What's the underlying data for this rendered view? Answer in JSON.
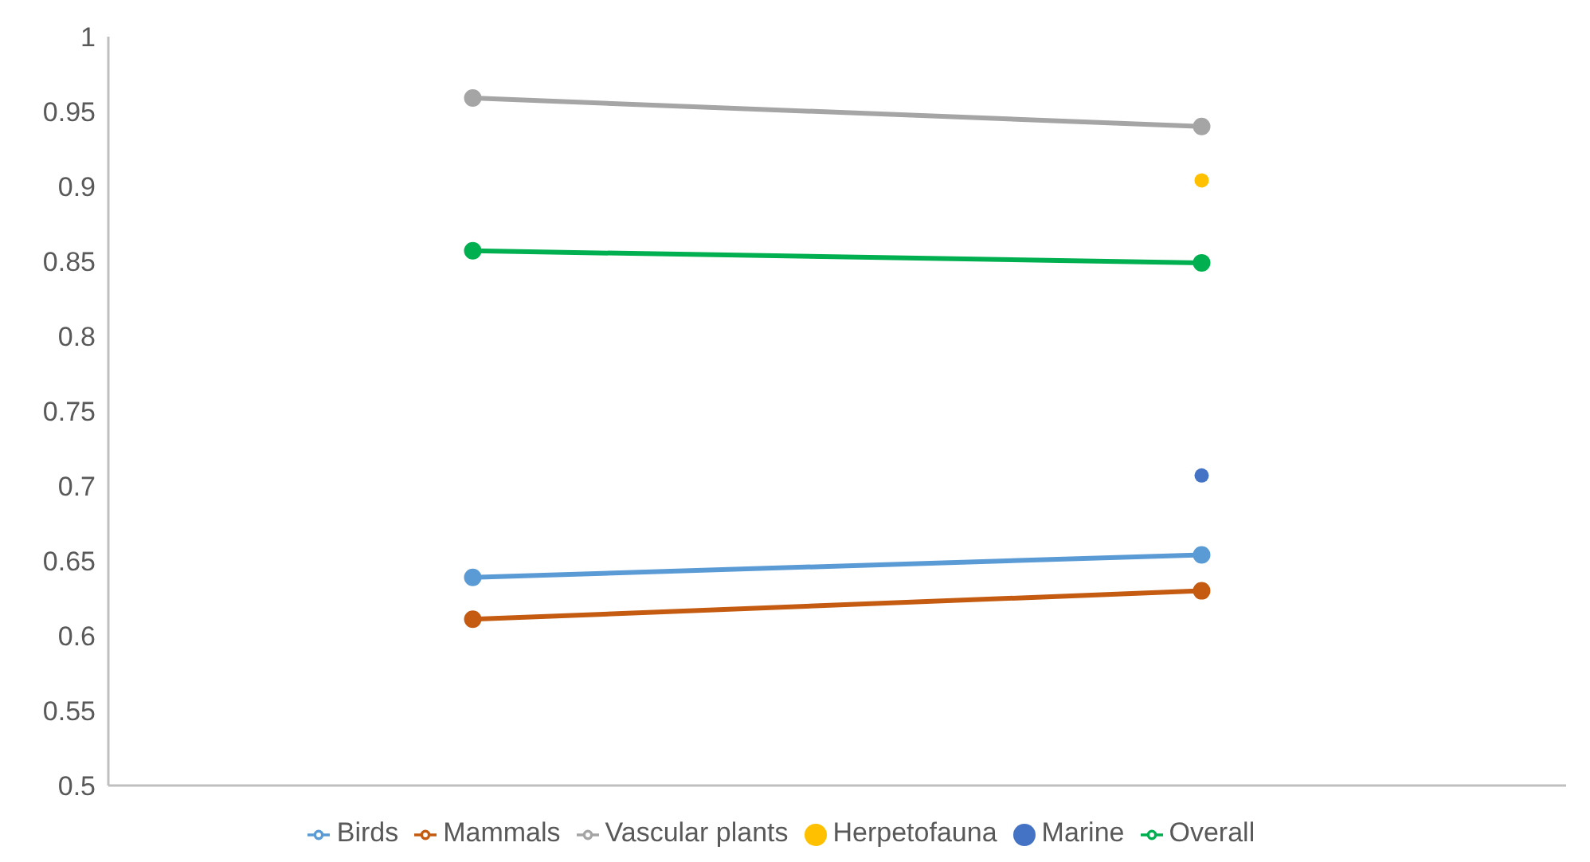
{
  "chart_data": {
    "type": "line",
    "categories": [
      null,
      null
    ],
    "ylim": [
      0.5,
      1
    ],
    "yticks": [
      0.5,
      0.55,
      0.6,
      0.65,
      0.7,
      0.75,
      0.8,
      0.85,
      0.9,
      0.95,
      1
    ],
    "grid": false,
    "legend": "bottom",
    "marker": "circle",
    "series": [
      {
        "name": "Birds",
        "color": "#5b9bd5",
        "values": [
          0.639,
          0.654
        ]
      },
      {
        "name": "Mammals",
        "color": "#c55a11",
        "values": [
          0.611,
          0.63
        ]
      },
      {
        "name": "Vascular plants",
        "color": "#a5a5a5",
        "values": [
          0.959,
          0.94
        ]
      },
      {
        "name": "Herpetofauna",
        "type": "scatter",
        "color": "#ffc000",
        "values": [
          null,
          0.904
        ]
      },
      {
        "name": "Marine",
        "type": "scatter",
        "color": "#4472c4",
        "values": [
          null,
          0.707
        ]
      },
      {
        "name": "Overall",
        "color": "#00b050",
        "values": [
          0.857,
          0.849
        ]
      }
    ]
  }
}
